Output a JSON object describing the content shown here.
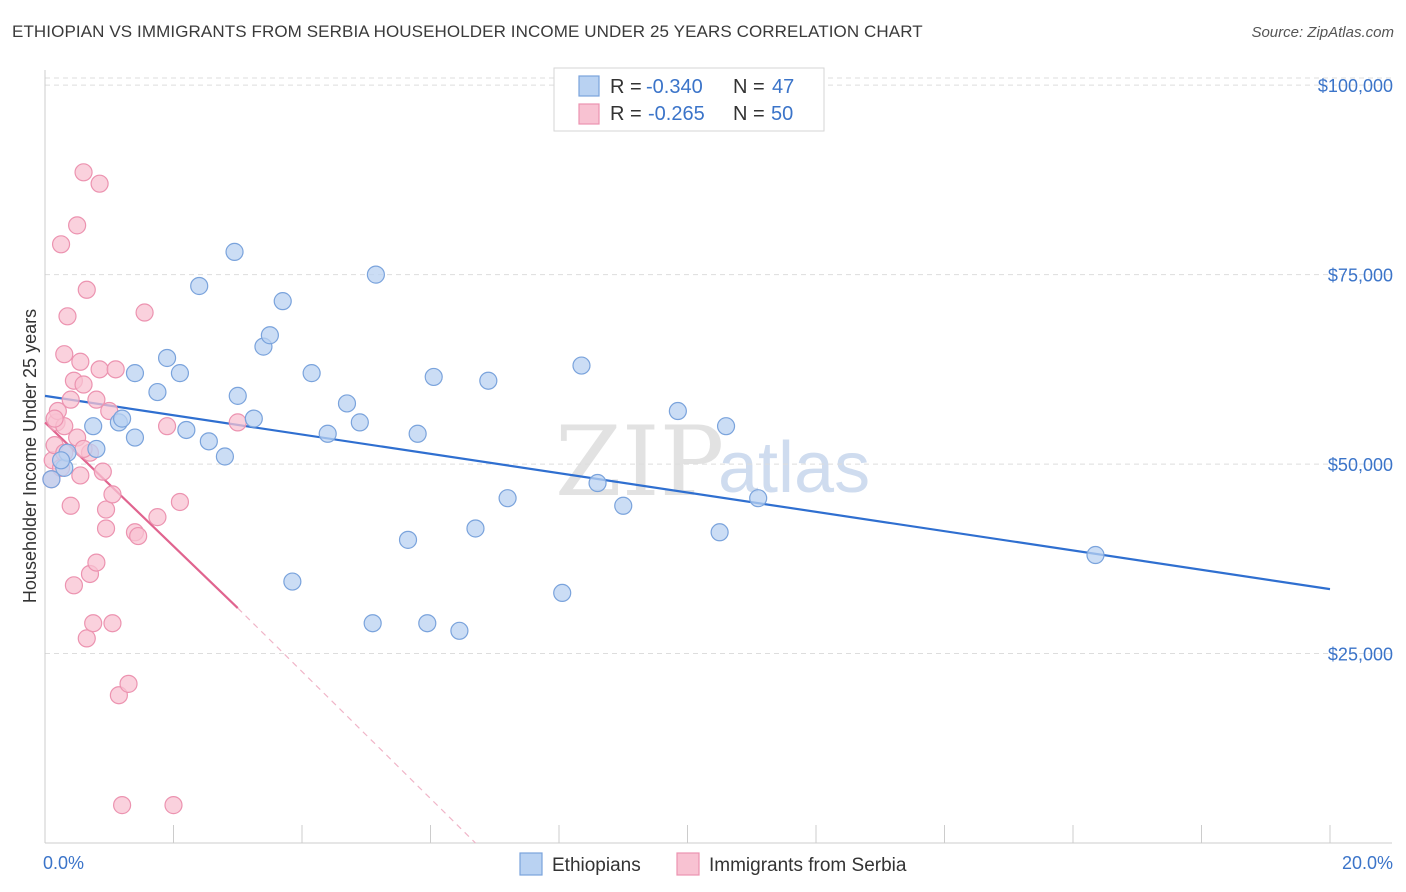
{
  "title": "ETHIOPIAN VS IMMIGRANTS FROM SERBIA HOUSEHOLDER INCOME UNDER 25 YEARS CORRELATION CHART",
  "source": "Source: ZipAtlas.com",
  "watermark": {
    "zip": "ZIP",
    "atlas": "atlas"
  },
  "colors": {
    "blue_fill": "#b9d2f2",
    "blue_stroke": "#7aa3dc",
    "blue_line": "#2f6fd0",
    "pink_fill": "#f8c2d2",
    "pink_stroke": "#ec93b0",
    "pink_line": "#e0648f",
    "grid": "#dddddd",
    "axis_text": "#3b74c9"
  },
  "legend": {
    "rows": [
      {
        "r_label": "R =",
        "r_value": "-0.340",
        "n_label": "N =",
        "n_value": "47"
      },
      {
        "r_label": "R =",
        "r_value": "-0.265",
        "n_label": "N =",
        "n_value": "50"
      }
    ]
  },
  "chart_data": {
    "type": "scatter",
    "title": "ETHIOPIAN VS IMMIGRANTS FROM SERBIA HOUSEHOLDER INCOME UNDER 25 YEARS CORRELATION CHART",
    "xlabel": "",
    "ylabel": "Householder Income Under 25 years",
    "xlim": [
      0,
      20
    ],
    "ylim": [
      0,
      102000
    ],
    "x_tick_labels": [
      "0.0%",
      "20.0%"
    ],
    "y_ticks": [
      25000,
      50000,
      75000,
      100000
    ],
    "y_tick_labels": [
      "$25,000",
      "$50,000",
      "$75,000",
      "$100,000"
    ],
    "grid": true,
    "series": [
      {
        "name": "Ethiopians",
        "points": [
          [
            0.1,
            48000
          ],
          [
            0.3,
            49500
          ],
          [
            0.35,
            51500
          ],
          [
            0.8,
            52000
          ],
          [
            0.75,
            55000
          ],
          [
            1.15,
            55500
          ],
          [
            1.2,
            56000
          ],
          [
            1.4,
            53500
          ],
          [
            1.4,
            62000
          ],
          [
            1.75,
            59500
          ],
          [
            1.9,
            64000
          ],
          [
            2.1,
            62000
          ],
          [
            2.2,
            54500
          ],
          [
            2.4,
            73500
          ],
          [
            2.55,
            53000
          ],
          [
            2.8,
            51000
          ],
          [
            2.95,
            78000
          ],
          [
            3.0,
            59000
          ],
          [
            3.25,
            56000
          ],
          [
            3.4,
            65500
          ],
          [
            3.5,
            67000
          ],
          [
            3.7,
            71500
          ],
          [
            3.85,
            34500
          ],
          [
            4.15,
            62000
          ],
          [
            4.4,
            54000
          ],
          [
            4.7,
            58000
          ],
          [
            4.9,
            55500
          ],
          [
            5.1,
            29000
          ],
          [
            5.15,
            75000
          ],
          [
            5.65,
            40000
          ],
          [
            5.8,
            54000
          ],
          [
            5.95,
            29000
          ],
          [
            6.05,
            61500
          ],
          [
            6.45,
            28000
          ],
          [
            6.7,
            41500
          ],
          [
            6.9,
            61000
          ],
          [
            7.2,
            45500
          ],
          [
            8.05,
            33000
          ],
          [
            8.35,
            63000
          ],
          [
            8.6,
            47500
          ],
          [
            9.0,
            44500
          ],
          [
            9.85,
            57000
          ],
          [
            10.5,
            41000
          ],
          [
            10.6,
            55000
          ],
          [
            11.1,
            45500
          ],
          [
            16.35,
            38000
          ],
          [
            0.25,
            50500
          ]
        ],
        "trend": {
          "x0": 0,
          "y0": 59000,
          "x1": 20,
          "y1": 33500
        }
      },
      {
        "name": "Immigrants from Serbia",
        "points": [
          [
            0.1,
            48000
          ],
          [
            0.12,
            50500
          ],
          [
            0.15,
            52500
          ],
          [
            0.18,
            55500
          ],
          [
            0.2,
            57000
          ],
          [
            0.25,
            49500
          ],
          [
            0.25,
            79000
          ],
          [
            0.3,
            51500
          ],
          [
            0.3,
            55000
          ],
          [
            0.35,
            69500
          ],
          [
            0.4,
            44500
          ],
          [
            0.4,
            58500
          ],
          [
            0.45,
            34000
          ],
          [
            0.45,
            61000
          ],
          [
            0.5,
            53500
          ],
          [
            0.5,
            81500
          ],
          [
            0.55,
            63500
          ],
          [
            0.55,
            48500
          ],
          [
            0.6,
            88500
          ],
          [
            0.6,
            60500
          ],
          [
            0.65,
            73000
          ],
          [
            0.65,
            27000
          ],
          [
            0.7,
            51500
          ],
          [
            0.7,
            35500
          ],
          [
            0.75,
            29000
          ],
          [
            0.8,
            37000
          ],
          [
            0.8,
            58500
          ],
          [
            0.85,
            87000
          ],
          [
            0.85,
            62500
          ],
          [
            0.9,
            49000
          ],
          [
            0.95,
            44000
          ],
          [
            0.95,
            41500
          ],
          [
            1.0,
            57000
          ],
          [
            1.05,
            46000
          ],
          [
            1.05,
            29000
          ],
          [
            1.1,
            62500
          ],
          [
            1.15,
            19500
          ],
          [
            1.2,
            5000
          ],
          [
            1.3,
            21000
          ],
          [
            1.4,
            41000
          ],
          [
            1.45,
            40500
          ],
          [
            1.55,
            70000
          ],
          [
            1.75,
            43000
          ],
          [
            1.9,
            55000
          ],
          [
            2.0,
            5000
          ],
          [
            2.1,
            45000
          ],
          [
            3.0,
            55500
          ],
          [
            0.3,
            64500
          ],
          [
            0.15,
            56000
          ],
          [
            0.6,
            52000
          ]
        ],
        "trend": {
          "x0": 0,
          "y0": 55500,
          "x1": 3.0,
          "y1": 31000
        },
        "trend_extension": {
          "x0": 3.0,
          "y0": 31000,
          "x1": 6.7,
          "y1": 0
        }
      }
    ]
  },
  "bottom_legend": [
    {
      "label": "Ethiopians"
    },
    {
      "label": "Immigrants from Serbia"
    }
  ]
}
